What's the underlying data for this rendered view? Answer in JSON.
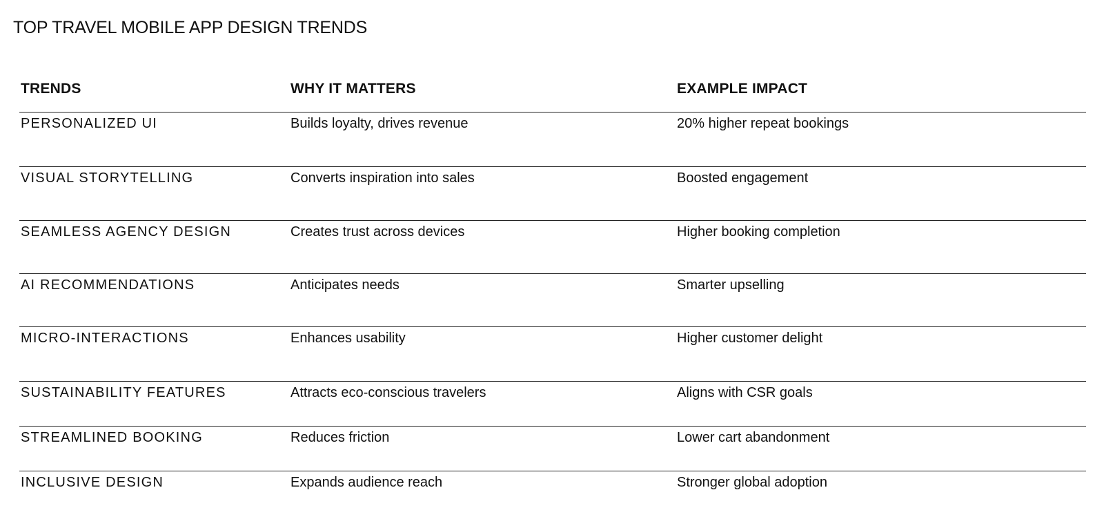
{
  "title": "TOP TRAVEL MOBILE APP DESIGN TRENDS",
  "table": {
    "headers": [
      "TRENDS",
      "WHY IT MATTERS",
      "EXAMPLE IMPACT"
    ],
    "rows": [
      [
        "PERSONALIZED UI",
        "Builds loyalty, drives revenue",
        "20% higher repeat bookings"
      ],
      [
        "VISUAL STORYTELLING",
        "Converts inspiration into sales",
        "Boosted engagement"
      ],
      [
        "SEAMLESS AGENCY DESIGN",
        "Creates trust across devices",
        "Higher booking completion"
      ],
      [
        "AI RECOMMENDATIONS",
        "Anticipates needs",
        "Smarter upselling"
      ],
      [
        "MICRO-INTERACTIONS",
        "Enhances usability",
        "Higher customer delight"
      ],
      [
        "SUSTAINABILITY FEATURES",
        "Attracts eco-conscious travelers",
        "Aligns with CSR goals"
      ],
      [
        "STREAMLINED BOOKING",
        "Reduces friction",
        "Lower cart abandonment"
      ],
      [
        "INCLUSIVE DESIGN",
        "Expands audience reach",
        "Stronger global adoption"
      ]
    ]
  }
}
